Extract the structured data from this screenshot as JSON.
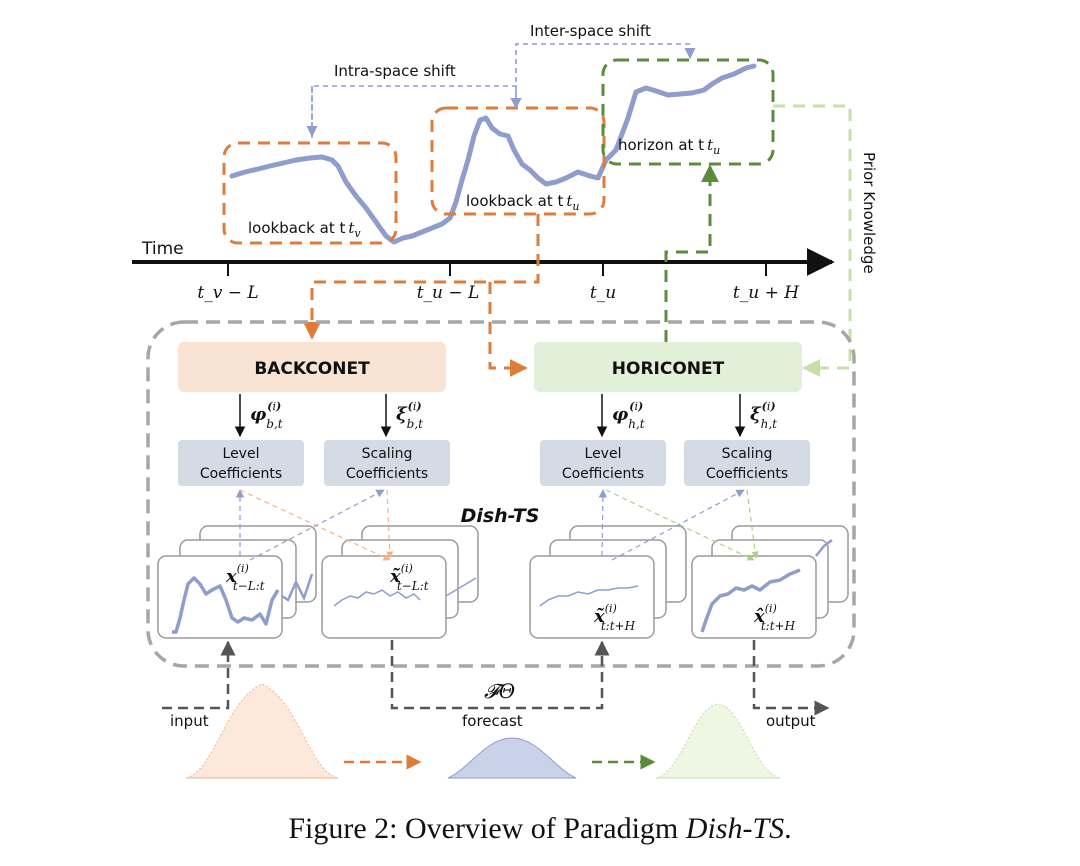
{
  "labels": {
    "inter_space_shift": "Inter-space shift",
    "intra_space_shift": "Intra-space shift",
    "horizon_tu": "horizon at t",
    "lookback_tv": "lookback at t",
    "lookback_tu": "lookback at t",
    "time": "Time",
    "prior_knowledge": "Prior Knowledge",
    "input": "input",
    "forecast": "forecast",
    "output": "output",
    "dish_ts": "Dish-TS",
    "f_theta": "𝓕Θ"
  },
  "ticks": [
    "t_v − L",
    "t_u − L",
    "t_u",
    "t_u + H"
  ],
  "backconet": "BACKCONET",
  "horiconet": "HORICONET",
  "coef": {
    "level_1": "Level",
    "level_2": "Coefficients",
    "scaling_1": "Scaling",
    "scaling_2": "Coefficients"
  },
  "symbols": {
    "phi_b": "φ",
    "xi_b": "ξ",
    "phi_h": "φ",
    "xi_h": "ξ",
    "x_in": "x",
    "x_norm": "x̃",
    "x_pred": "x̃",
    "x_out": "x̂"
  },
  "caption": {
    "prefix": "Figure 2: Overview of Paradigm ",
    "name": "Dish-TS",
    "suffix": "."
  },
  "colors": {
    "orange": "#e07b39",
    "green": "#5b8c3a",
    "lightgreen": "#c5e0a8",
    "series": "#8e9dcc",
    "gray": "#9a9a9a",
    "coef_fill": "#d5dbe5",
    "back_fill": "#f9e3d3",
    "hori_fill": "#e2f0d9"
  }
}
